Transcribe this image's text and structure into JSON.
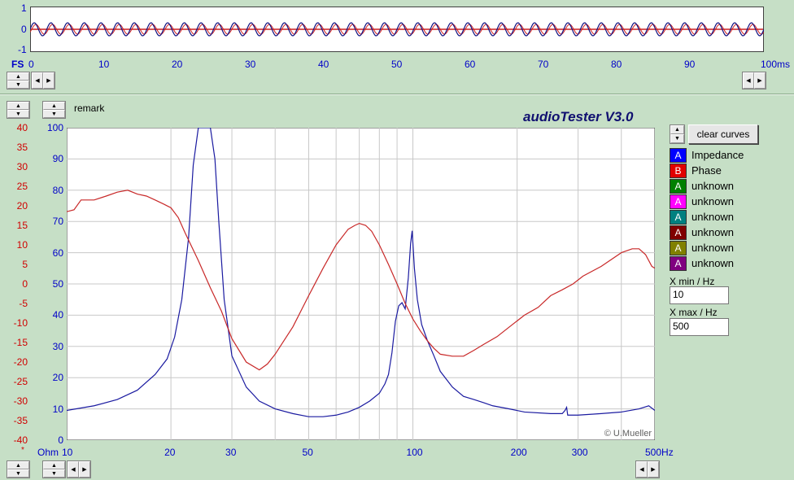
{
  "app_title": "audioTester  V3.0",
  "remark_label": "remark",
  "scope": {
    "y_ticks": [
      "1",
      "0",
      "-1"
    ],
    "x_label_prefix": "FS",
    "x_ticks": [
      "0",
      "10",
      "20",
      "30",
      "40",
      "50",
      "60",
      "70",
      "80",
      "90",
      "100ms"
    ],
    "cycles": 44
  },
  "main_plot": {
    "left_axis_ticks": [
      "40",
      "35",
      "30",
      "25",
      "20",
      "15",
      "10",
      "5",
      "0",
      "-5",
      "-10",
      "-15",
      "-20",
      "-25",
      "-30",
      "-35",
      "-40"
    ],
    "left_axis_unit": "*",
    "right_axis_ticks": [
      "100",
      "90",
      "80",
      "70",
      "60",
      "50",
      "40",
      "30",
      "20",
      "10",
      "0"
    ],
    "right_axis_unit": "Ohm",
    "x_ticks": [
      "10",
      "20",
      "30",
      "50",
      "100",
      "200",
      "300",
      "500Hz"
    ],
    "watermark": "© U.Mueller"
  },
  "clear_curves_label": "clear curves",
  "legend": [
    {
      "letter": "A",
      "label": "Impedance",
      "color": "#0000ff"
    },
    {
      "letter": "B",
      "label": "Phase",
      "color": "#e00000"
    },
    {
      "letter": "A",
      "label": "unknown",
      "color": "#008000"
    },
    {
      "letter": "A",
      "label": "unknown",
      "color": "#ff00ff"
    },
    {
      "letter": "A",
      "label": "unknown",
      "color": "#008080"
    },
    {
      "letter": "A",
      "label": "unknown",
      "color": "#800000"
    },
    {
      "letter": "A",
      "label": "unknown",
      "color": "#808000"
    },
    {
      "letter": "A",
      "label": "unknown",
      "color": "#800080"
    }
  ],
  "xmin_label": "X min / Hz",
  "xmin_value": "10",
  "xmax_label": "X max / Hz",
  "xmax_value": "500",
  "chart_data": {
    "type": "line",
    "xscale": "log",
    "xlim": [
      10,
      500
    ],
    "series": [
      {
        "name": "Impedance",
        "axis": "Ohm",
        "ylim": [
          0,
          100
        ],
        "color": "#1a1aa0",
        "x": [
          10,
          12,
          14,
          16,
          18,
          19.5,
          20.5,
          21.5,
          22.5,
          23.2,
          24,
          26,
          26.8,
          27.5,
          28.5,
          30,
          33,
          36,
          40,
          45,
          50,
          55,
          60,
          65,
          70,
          75,
          80,
          83,
          85,
          87,
          89,
          91,
          93,
          95,
          97,
          98.5,
          99.5,
          101,
          103,
          106,
          110,
          115,
          120,
          130,
          140,
          150,
          160,
          170,
          190,
          210,
          250,
          270,
          275,
          278,
          280,
          300,
          350,
          400,
          450,
          480,
          500
        ],
        "y": [
          9.5,
          11,
          13,
          16,
          21,
          26,
          33,
          45,
          65,
          88,
          100,
          100,
          90,
          70,
          45,
          27,
          17,
          12.5,
          10,
          8.5,
          7.5,
          7.5,
          8,
          9,
          10.5,
          12.5,
          15,
          18,
          21,
          28,
          38,
          43,
          44,
          42,
          52,
          63,
          67,
          55,
          45,
          37,
          32,
          27,
          22,
          17,
          14,
          13,
          12,
          11,
          10,
          9,
          8.5,
          8.5,
          9.5,
          10.5,
          8,
          8,
          8.5,
          9,
          10,
          11,
          9.5
        ]
      },
      {
        "name": "Phase",
        "axis": "*",
        "ylim": [
          -40,
          40
        ],
        "color": "#c82828",
        "x": [
          10,
          10.5,
          11,
          12,
          13,
          14,
          15,
          16,
          17,
          18,
          19,
          20,
          21,
          22,
          24,
          26,
          28,
          30,
          33,
          36,
          38,
          40,
          45,
          50,
          55,
          60,
          65,
          68,
          70,
          73,
          76,
          80,
          85,
          90,
          95,
          100,
          105,
          110,
          115,
          120,
          130,
          140,
          150,
          160,
          175,
          190,
          210,
          230,
          250,
          270,
          290,
          310,
          350,
          400,
          430,
          450,
          470,
          490,
          500
        ],
        "y": [
          18.5,
          19,
          21.5,
          21.5,
          22.5,
          23.5,
          24,
          23,
          22.5,
          21.5,
          20.5,
          19.5,
          17,
          13,
          6,
          -1,
          -7,
          -14,
          -20,
          -22,
          -20.5,
          -18,
          -11,
          -3,
          4,
          10,
          14,
          15,
          15.5,
          15,
          13.5,
          10,
          5,
          0,
          -5,
          -9,
          -12,
          -14.5,
          -16.5,
          -18,
          -18.5,
          -18.5,
          -17,
          -15.5,
          -13.5,
          -11,
          -8,
          -6,
          -3,
          -1.5,
          0,
          2,
          4.5,
          8,
          9,
          9,
          7.5,
          4.5,
          4
        ]
      }
    ]
  }
}
